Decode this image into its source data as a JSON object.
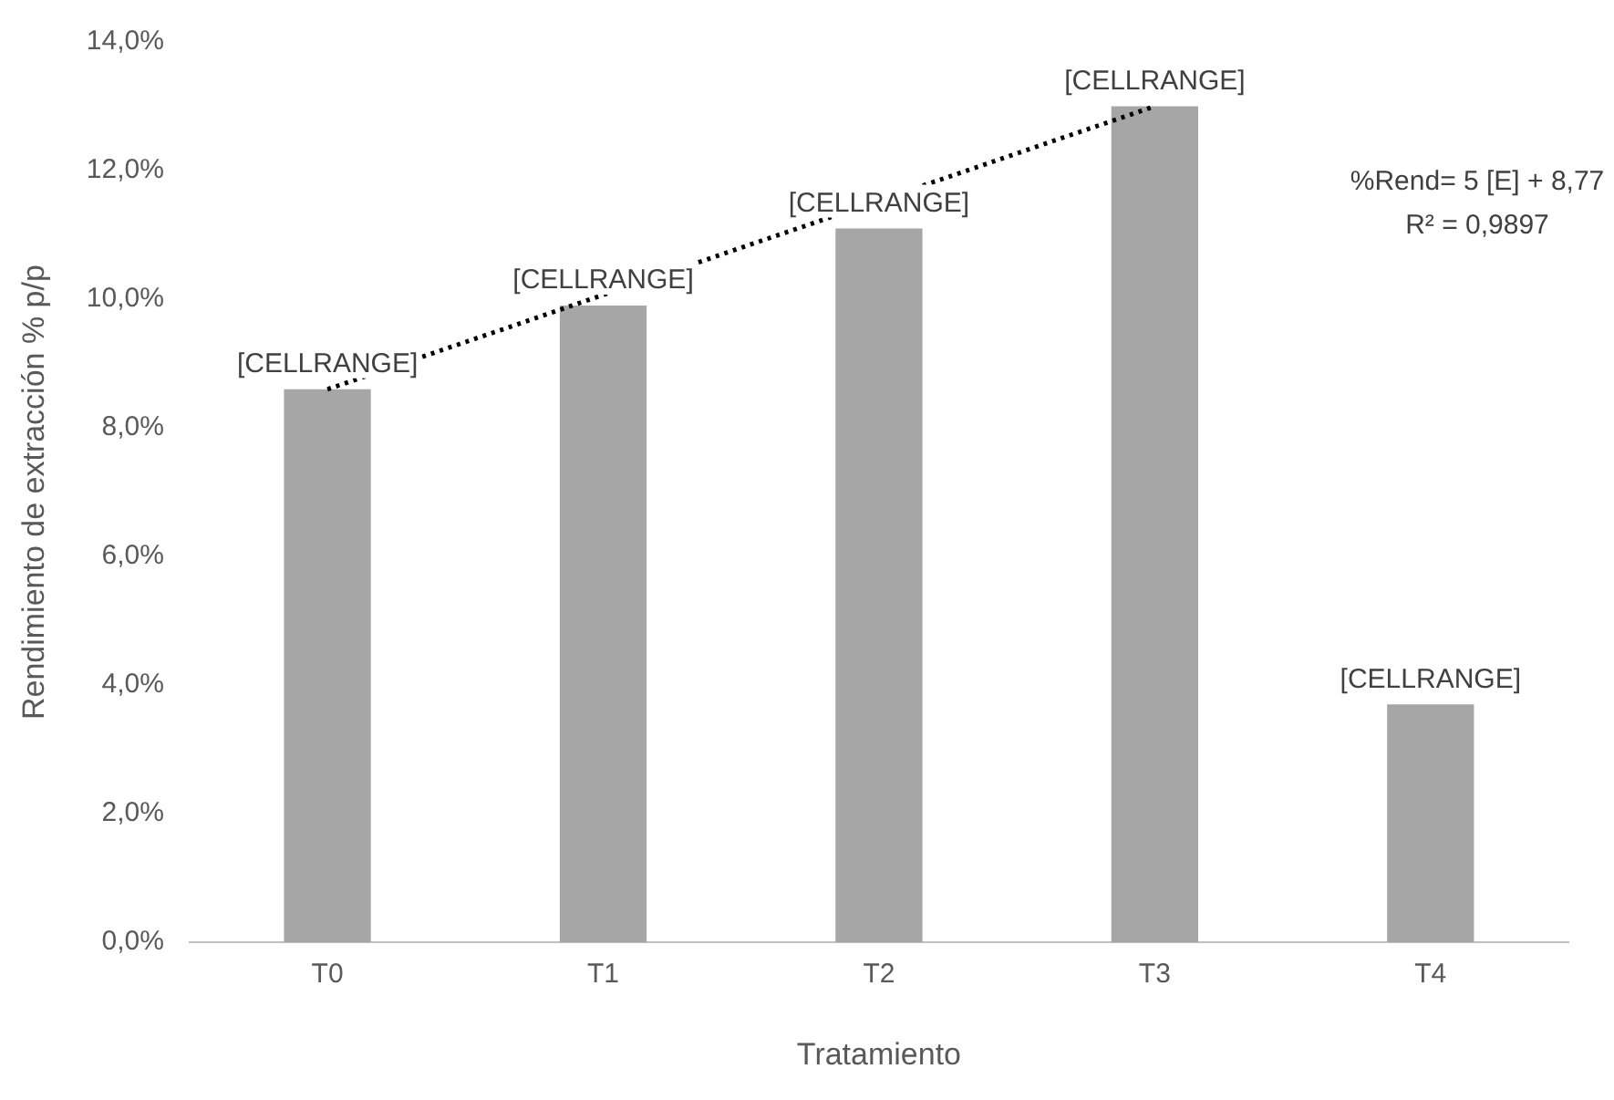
{
  "chart_data": {
    "type": "bar",
    "xlabel": "Tratamiento",
    "ylabel": "Rendimiento de extracción % p/p",
    "categories": [
      "T0",
      "T1",
      "T2",
      "T3",
      "T4"
    ],
    "series": [
      {
        "color": "#a6a6a6",
        "values": [
          8.6,
          9.9,
          11.1,
          13.0,
          3.7
        ],
        "value_labels": [
          "[CELLRANGE]",
          "[CELLRANGE]",
          "[CELLRANGE]",
          "[CELLRANGE]",
          "[CELLRANGE]"
        ]
      },
      {
        "type": "line",
        "color": "#000000",
        "x": [
          "T0",
          "T3"
        ],
        "values": [
          8.6,
          13.0
        ],
        "line_style": "dotted",
        "marker": "none"
      }
    ],
    "ylim": [
      0,
      14
    ],
    "yticks": [
      {
        "value": 0,
        "label": "0,0%"
      },
      {
        "value": 2,
        "label": "2,0%"
      },
      {
        "value": 4,
        "label": "4,0%"
      },
      {
        "value": 6,
        "label": "6,0%"
      },
      {
        "value": 8,
        "label": "8,0%"
      },
      {
        "value": 10,
        "label": "10,0%"
      },
      {
        "value": 12,
        "label": "12,0%"
      },
      {
        "value": 14,
        "label": "14,0%"
      }
    ],
    "annotations": [
      "%Rend= 5 [E] + 8,77",
      "R² = 0,9897"
    ],
    "grid": false,
    "legend": false
  }
}
